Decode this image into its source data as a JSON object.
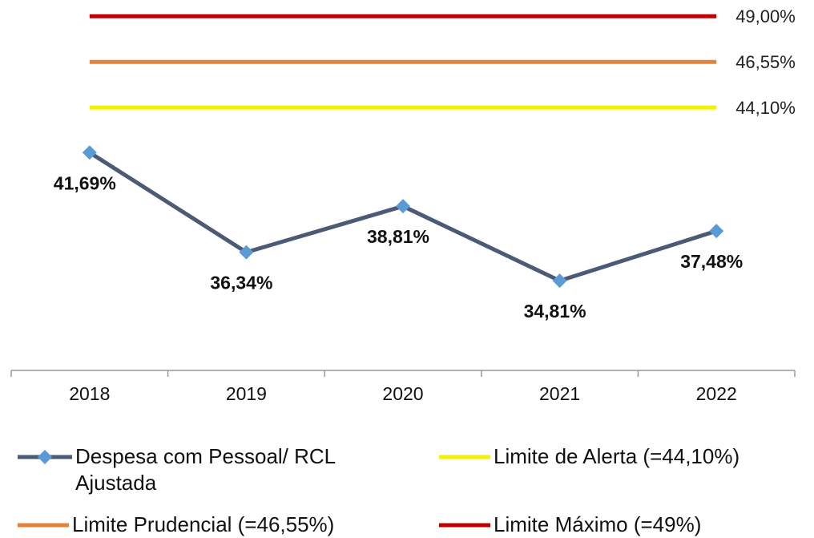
{
  "chart_data": {
    "type": "line",
    "categories": [
      "2018",
      "2019",
      "2020",
      "2021",
      "2022"
    ],
    "series": [
      {
        "name": "Despesa com Pessoal/ RCL Ajustada",
        "color": "#4b5a75",
        "marker_color": "#5b9bd5",
        "values": [
          41.69,
          36.34,
          38.81,
          34.81,
          37.48
        ],
        "value_labels": [
          "41,69%",
          "36,34%",
          "38,81%",
          "34,81%",
          "37,48%"
        ]
      },
      {
        "name": "Limite de Alerta (=44,10%)",
        "color": "#f2f200",
        "values": [
          44.1,
          44.1,
          44.1,
          44.1,
          44.1
        ],
        "value_labels": [
          null,
          null,
          null,
          null,
          "44,10%"
        ]
      },
      {
        "name": "Limite Prudencial (=46,55%)",
        "color": "#e3823a",
        "values": [
          46.55,
          46.55,
          46.55,
          46.55,
          46.55
        ],
        "value_labels": [
          null,
          null,
          null,
          null,
          "46,55%"
        ]
      },
      {
        "name": "Limite Máximo (=49%)",
        "color": "#c00000",
        "values": [
          49,
          49,
          49,
          49,
          49
        ],
        "value_labels": [
          null,
          null,
          null,
          null,
          "49,00%"
        ]
      }
    ],
    "ylim": [
      30,
      50
    ]
  }
}
